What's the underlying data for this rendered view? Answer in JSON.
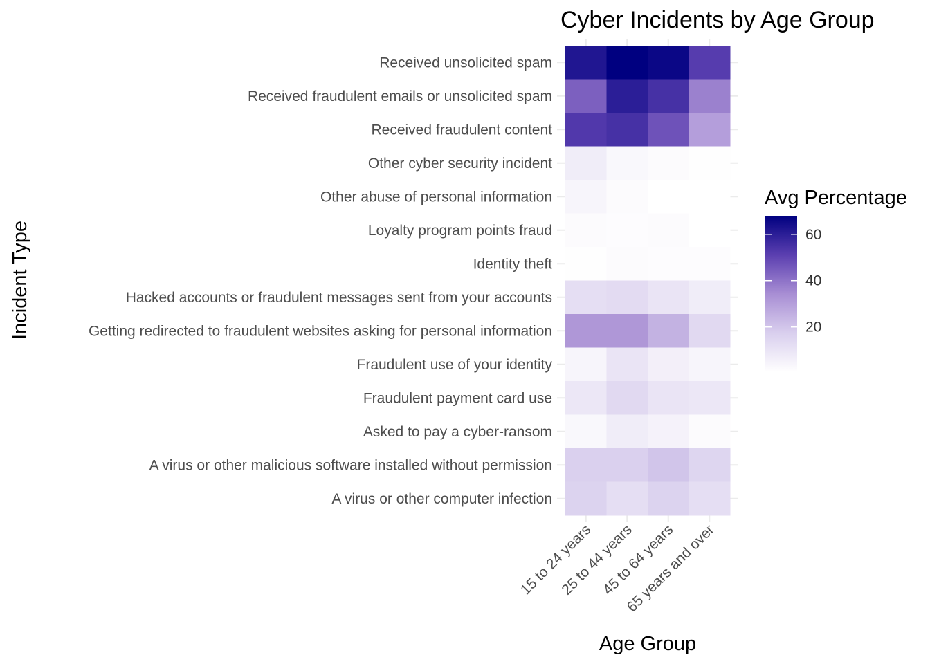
{
  "chart_data": {
    "type": "heatmap",
    "title": "Cyber Incidents by Age Group",
    "xlabel": "Age Group",
    "ylabel": "Incident Type",
    "x_categories": [
      "15 to 24 years",
      "25 to 44 years",
      "45 to 64 years",
      "65 years and over"
    ],
    "y_categories": [
      "Received unsolicited spam",
      "Received fraudulent emails or unsolicited spam",
      "Received fraudulent content",
      "Other cyber security incident",
      "Other abuse of personal information",
      "Loyalty program points fraud",
      "Identity theft",
      "Hacked accounts or fraudulent messages sent from your accounts",
      "Getting redirected to fraudulent websites asking for personal information",
      "Fraudulent use of your identity",
      "Fraudulent payment card use",
      "Asked to pay a cyber-ransom",
      "A virus or other malicious software installed without permission",
      "A virus or other computer infection"
    ],
    "values": [
      [
        62,
        68,
        66,
        52
      ],
      [
        44,
        60,
        55,
        37
      ],
      [
        53,
        55,
        47,
        30
      ],
      [
        7,
        3,
        2,
        1
      ],
      [
        4,
        2,
        0.5,
        0.5
      ],
      [
        2,
        1.5,
        2,
        0.5
      ],
      [
        1,
        2,
        1.5,
        1.5
      ],
      [
        12,
        13,
        10,
        7
      ],
      [
        32,
        32,
        25,
        14
      ],
      [
        4,
        10,
        6,
        4
      ],
      [
        9,
        14,
        10,
        9
      ],
      [
        3,
        7,
        5,
        2
      ],
      [
        17,
        17,
        20,
        15
      ],
      [
        16,
        12,
        16,
        12
      ]
    ],
    "legend": {
      "title": "Avg Percentage",
      "ticks": [
        20,
        40,
        60
      ],
      "range": [
        0.5,
        68
      ],
      "low_color": "#ffffff",
      "high_color": "#000080",
      "placement": "right"
    }
  }
}
